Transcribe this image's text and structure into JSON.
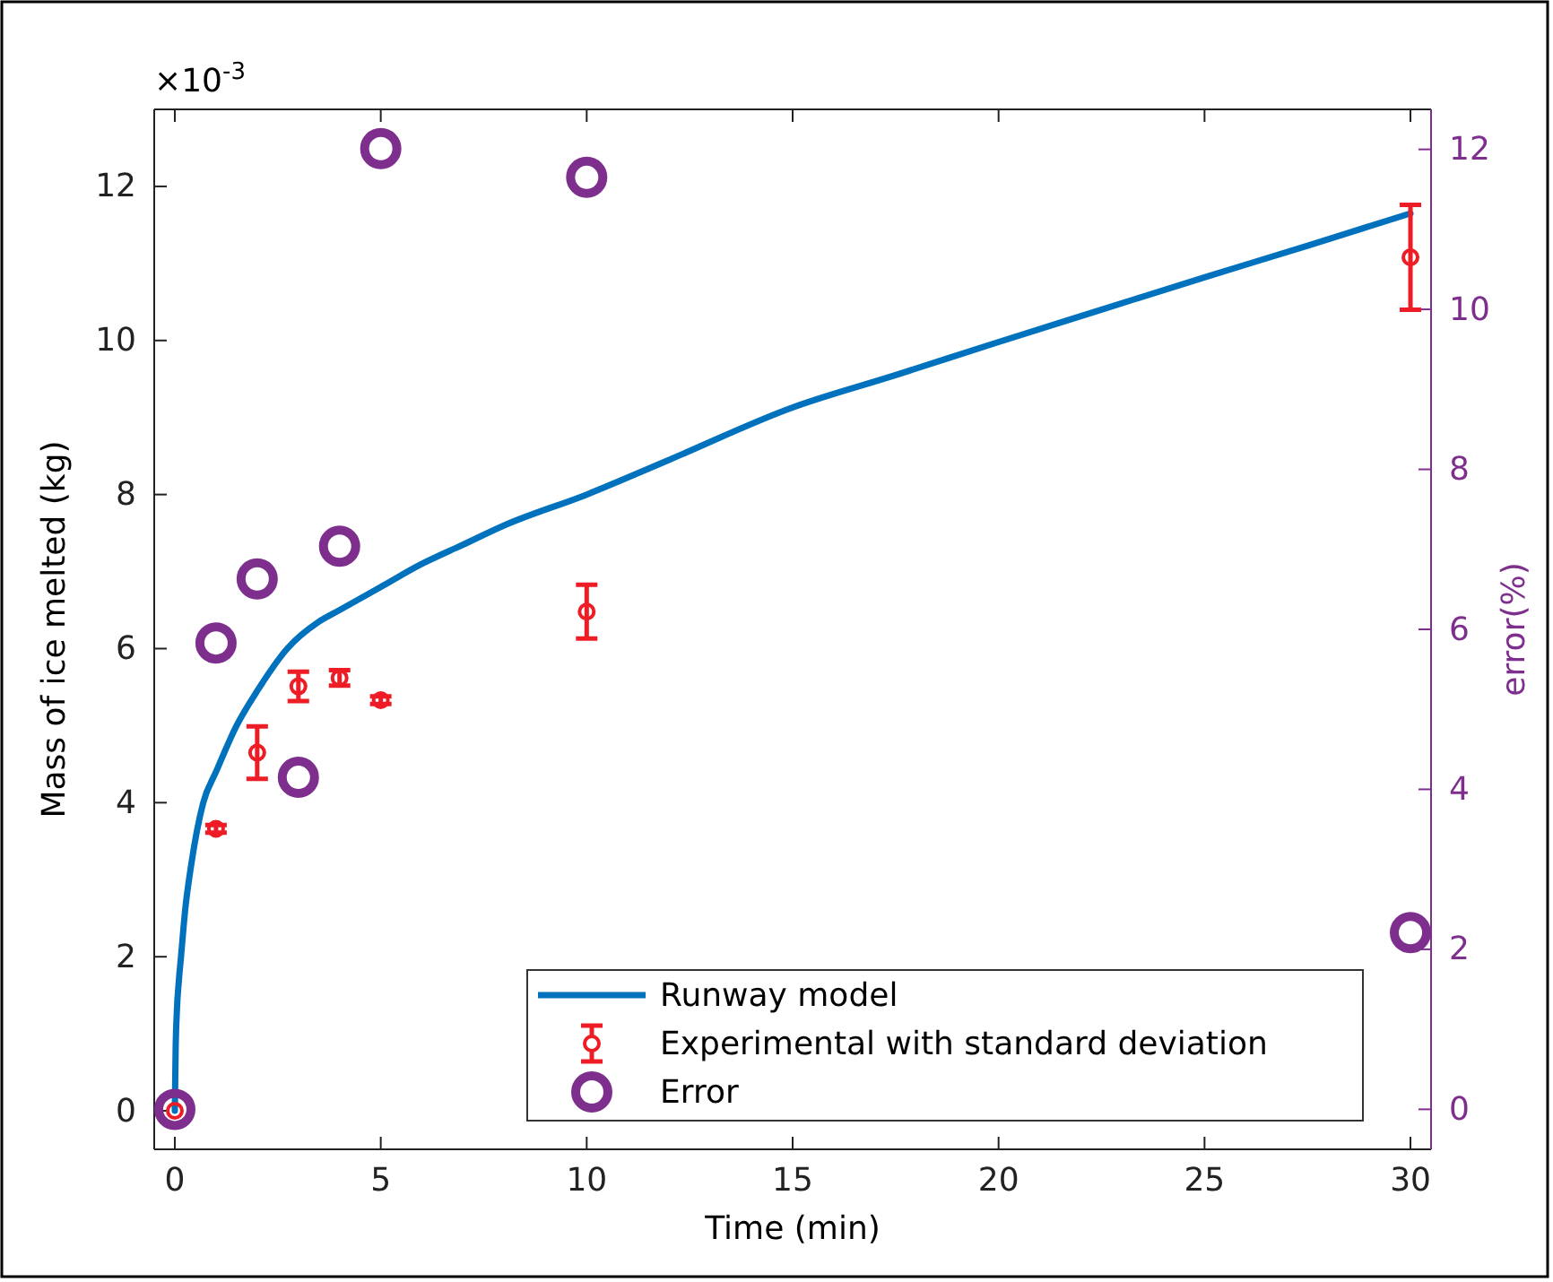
{
  "chart_data": {
    "type": "line",
    "xlabel": "Time (min)",
    "ylabel": "Mass of ice melted (kg)",
    "y2label": "error(%)",
    "annotations": [
      "×10$^{-3}$"
    ],
    "xlim": [
      -0.5,
      30.5
    ],
    "xticks": [
      0,
      5,
      10,
      15,
      20,
      25,
      30
    ],
    "ylim": [
      -0.5,
      13
    ],
    "yticks": [
      0,
      2,
      4,
      6,
      8,
      10,
      12
    ],
    "y2lim": [
      -0.5,
      12.5
    ],
    "y2ticks": [
      0,
      2,
      4,
      6,
      8,
      10,
      12
    ],
    "grid": false,
    "legend": "bottom right",
    "series": [
      {
        "name": "Runway model",
        "color": "#0072bd",
        "marker": "none",
        "line_style": "solid",
        "x": [
          0,
          0.02,
          0.05,
          0.1,
          0.15,
          0.25,
          0.4,
          0.69,
          1,
          1.5,
          2,
          2.73,
          3.5,
          4,
          5,
          6,
          7,
          8,
          10,
          12,
          15,
          17.5,
          20,
          22.5,
          25,
          27.5,
          30
        ],
        "values": [
          0,
          0.8,
          1.3,
          1.7,
          2.0,
          2.6,
          3.2,
          4.0,
          4.4,
          5.0,
          5.45,
          6.0,
          6.35,
          6.5,
          6.8,
          7.1,
          7.35,
          7.6,
          8.0,
          8.45,
          9.13,
          9.55,
          9.98,
          10.4,
          10.82,
          11.23,
          11.65
        ]
      },
      {
        "name": "Experimental with standard deviation",
        "type": "scatter",
        "color": "#ee1c25",
        "marker": "circle",
        "x": [
          0,
          1,
          2,
          3,
          4,
          5,
          10,
          30
        ],
        "values": [
          0,
          3.66,
          4.65,
          5.51,
          5.62,
          5.33,
          6.48,
          11.08
        ],
        "errors": [
          null,
          0.05,
          0.34,
          0.19,
          0.1,
          0.05,
          0.35,
          0.68
        ]
      },
      {
        "name": "Error",
        "type": "scatter",
        "axis": "y2",
        "color": "#7e2f8e",
        "marker": "circle",
        "x": [
          0,
          1,
          2,
          3,
          4,
          5,
          10,
          30
        ],
        "values": [
          0,
          5.83,
          6.63,
          4.15,
          7.04,
          12.01,
          11.65,
          2.21
        ]
      }
    ]
  }
}
